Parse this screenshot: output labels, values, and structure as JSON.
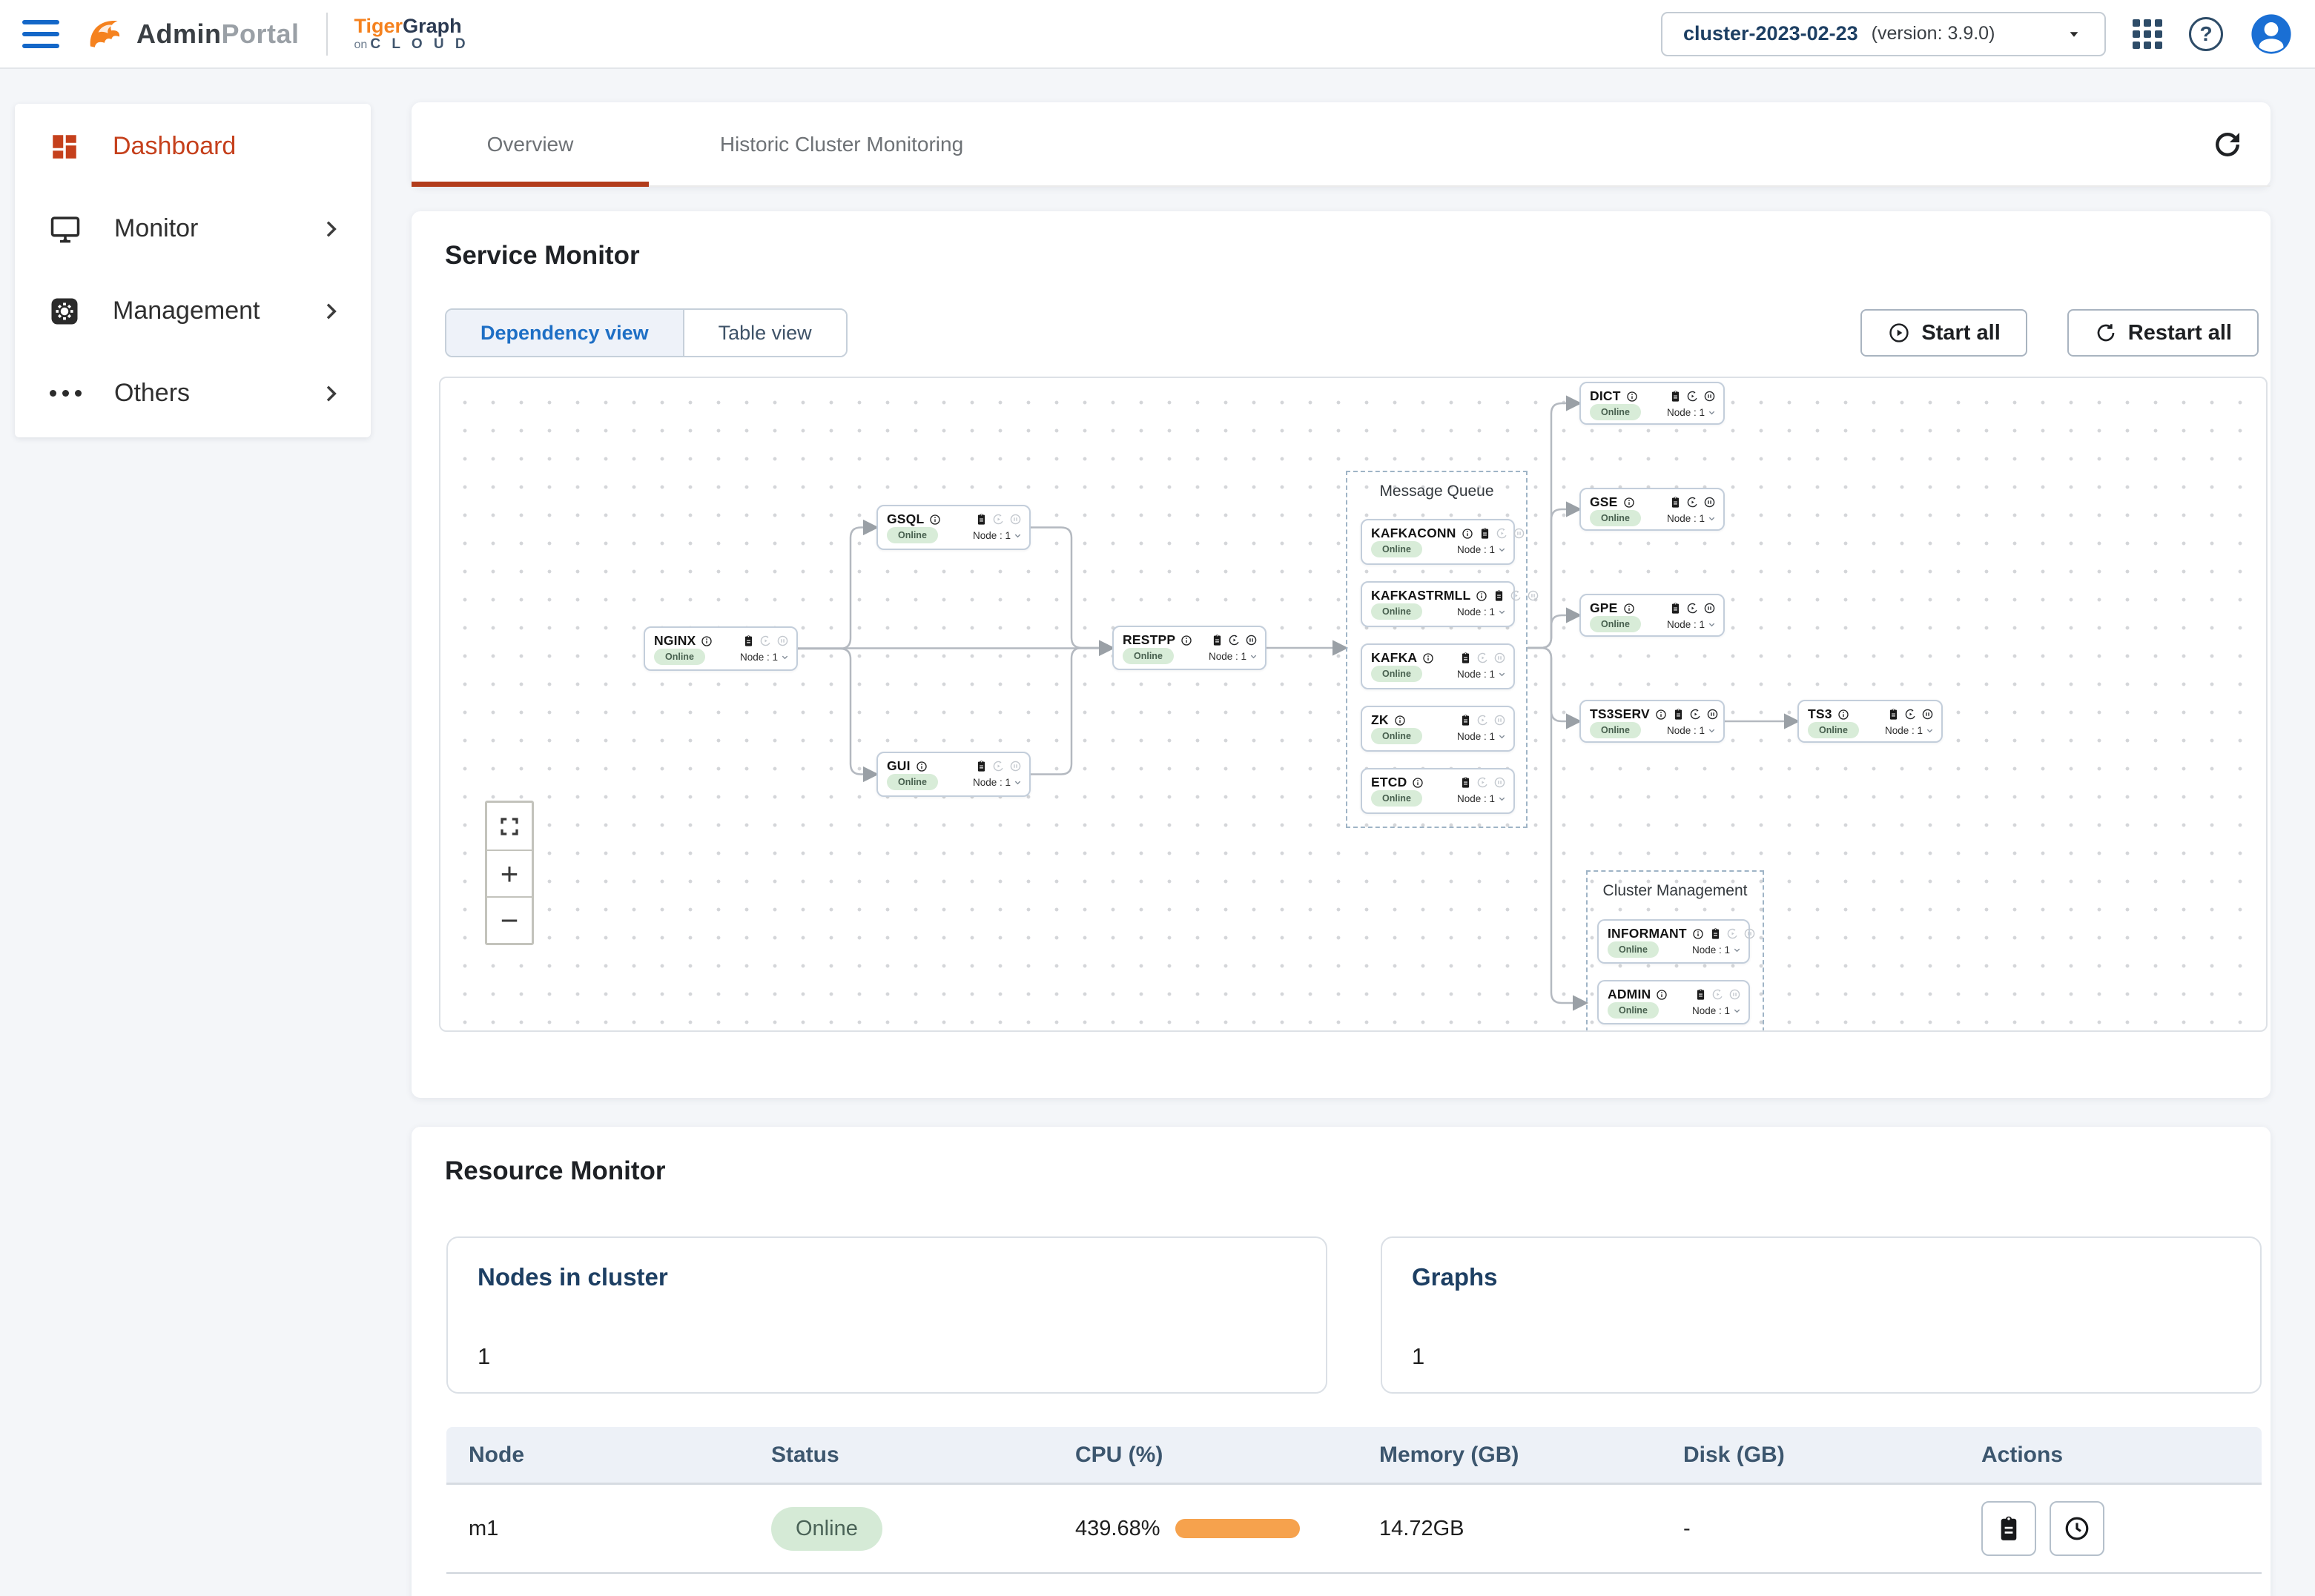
{
  "topbar": {
    "brand_admin": "Admin",
    "brand_portal": "Portal",
    "brand_tiger": "Tiger",
    "brand_graph": "Graph",
    "brand_on": "on",
    "brand_cloud": "C L O U D",
    "cluster": "cluster-2023-02-23",
    "version": "(version: 3.9.0)"
  },
  "sidebar": {
    "items": [
      {
        "label": "Dashboard",
        "active": true,
        "expandable": false
      },
      {
        "label": "Monitor",
        "active": false,
        "expandable": true
      },
      {
        "label": "Management",
        "active": false,
        "expandable": true
      },
      {
        "label": "Others",
        "active": false,
        "expandable": true
      }
    ]
  },
  "tabs": {
    "overview": "Overview",
    "historic": "Historic Cluster Monitoring"
  },
  "service_monitor": {
    "title": "Service Monitor",
    "toggle_dependency": "Dependency view",
    "toggle_table": "Table view",
    "start_all": "Start all",
    "restart_all": "Restart all",
    "groups": {
      "mq": "Message Queue",
      "cm": "Cluster Management"
    },
    "nodes": [
      {
        "id": "nginx",
        "name": "NGINX",
        "status": "Online",
        "node": "Node : 1",
        "controls_active": false
      },
      {
        "id": "gsql",
        "name": "GSQL",
        "status": "Online",
        "node": "Node : 1",
        "controls_active": false
      },
      {
        "id": "gui",
        "name": "GUI",
        "status": "Online",
        "node": "Node : 1",
        "controls_active": false
      },
      {
        "id": "restpp",
        "name": "RESTPP",
        "status": "Online",
        "node": "Node : 1",
        "controls_active": true
      },
      {
        "id": "kafkaconn",
        "name": "KAFKACONN",
        "status": "Online",
        "node": "Node : 1",
        "controls_active": false
      },
      {
        "id": "kafkastrmll",
        "name": "KAFKASTRMLL",
        "status": "Online",
        "node": "Node : 1",
        "controls_active": false
      },
      {
        "id": "kafka",
        "name": "KAFKA",
        "status": "Online",
        "node": "Node : 1",
        "controls_active": false
      },
      {
        "id": "zk",
        "name": "ZK",
        "status": "Online",
        "node": "Node : 1",
        "controls_active": false
      },
      {
        "id": "etcd",
        "name": "ETCD",
        "status": "Online",
        "node": "Node : 1",
        "controls_active": false
      },
      {
        "id": "dict",
        "name": "DICT",
        "status": "Online",
        "node": "Node : 1",
        "controls_active": true
      },
      {
        "id": "gse",
        "name": "GSE",
        "status": "Online",
        "node": "Node : 1",
        "controls_active": true
      },
      {
        "id": "gpe",
        "name": "GPE",
        "status": "Online",
        "node": "Node : 1",
        "controls_active": true
      },
      {
        "id": "ts3serv",
        "name": "TS3SERV",
        "status": "Online",
        "node": "Node : 1",
        "controls_active": true
      },
      {
        "id": "ts3",
        "name": "TS3",
        "status": "Online",
        "node": "Node : 1",
        "controls_active": true
      },
      {
        "id": "informant",
        "name": "INFORMANT",
        "status": "Online",
        "node": "Node : 1",
        "controls_active": false
      },
      {
        "id": "admin",
        "name": "ADMIN",
        "status": "Online",
        "node": "Node : 1",
        "controls_active": false
      }
    ],
    "edges": [
      [
        "nginx",
        "gsql"
      ],
      [
        "nginx",
        "restpp"
      ],
      [
        "nginx",
        "gui"
      ],
      [
        "gsql",
        "restpp"
      ],
      [
        "gui",
        "restpp"
      ],
      [
        "restpp",
        "mq"
      ],
      [
        "mq",
        "dict"
      ],
      [
        "mq",
        "gse"
      ],
      [
        "mq",
        "gpe"
      ],
      [
        "mq",
        "ts3serv"
      ],
      [
        "mq",
        "cm"
      ],
      [
        "ts3serv",
        "ts3"
      ]
    ]
  },
  "resource_monitor": {
    "title": "Resource Monitor",
    "stats": [
      {
        "label": "Nodes in cluster",
        "value": "1"
      },
      {
        "label": "Graphs",
        "value": "1"
      }
    ],
    "table": {
      "columns": [
        "Node",
        "Status",
        "CPU (%)",
        "Memory (GB)",
        "Disk (GB)",
        "Actions"
      ],
      "rows": [
        {
          "node": "m1",
          "status": "Online",
          "cpu": "439.68%",
          "memory": "14.72GB",
          "disk": "-"
        }
      ]
    }
  },
  "colors": {
    "accent_red": "#c5401c",
    "accent_blue": "#1e6fc5",
    "online_bg": "#d8ecd8",
    "cpu_bar": "#f6a24d"
  }
}
